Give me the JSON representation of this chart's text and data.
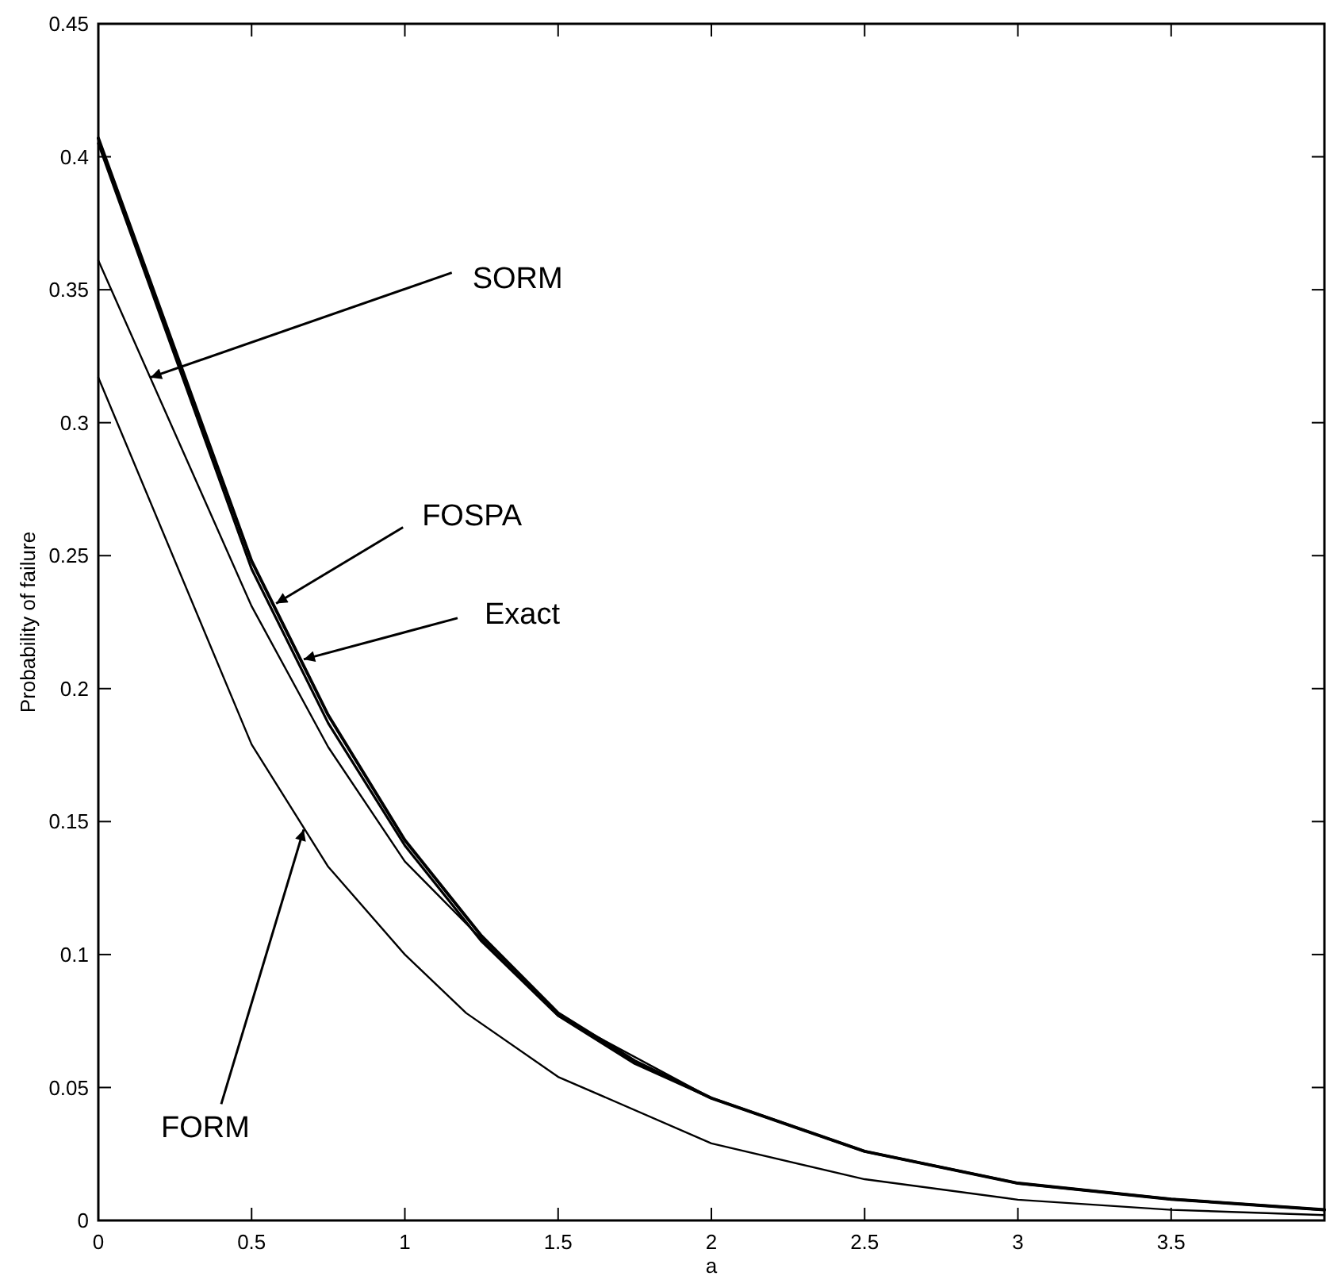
{
  "chart_data": {
    "type": "line",
    "xlabel": "a",
    "ylabel": "Probability of failure",
    "xlim": [
      0,
      4
    ],
    "ylim": [
      0,
      0.45
    ],
    "xticks": [
      0,
      0.5,
      1,
      1.5,
      2,
      2.5,
      3,
      3.5
    ],
    "yticks": [
      0,
      0.05,
      0.1,
      0.15,
      0.2,
      0.25,
      0.3,
      0.35,
      0.4,
      0.45
    ],
    "grid": false,
    "marker": "none",
    "line_style": "solid",
    "series": [
      {
        "color": "#000000",
        "x": [
          0,
          0.5,
          0.75,
          1,
          1.25,
          1.5,
          1.75,
          2,
          2.5,
          3,
          3.5,
          4
        ],
        "values": [
          0.407,
          0.248,
          0.19,
          0.143,
          0.107,
          0.078,
          0.06,
          0.046,
          0.026,
          0.014,
          0.008,
          0.004
        ]
      },
      {
        "color": "#000000",
        "x": [
          0,
          0.5,
          0.75,
          1,
          1.25,
          1.5,
          1.75,
          2,
          2.5,
          3,
          3.5,
          4
        ],
        "values": [
          0.405,
          0.245,
          0.187,
          0.141,
          0.105,
          0.077,
          0.059,
          0.046,
          0.026,
          0.014,
          0.008,
          0.004
        ]
      },
      {
        "color": "#000000",
        "x": [
          0,
          0.5,
          0.75,
          1,
          1.3,
          1.5,
          2,
          2.5,
          3,
          3.5,
          4
        ],
        "values": [
          0.361,
          0.231,
          0.178,
          0.135,
          0.1,
          0.077,
          0.046,
          0.026,
          0.014,
          0.008,
          0.004
        ]
      },
      {
        "color": "#000000",
        "x": [
          0,
          0.5,
          0.75,
          1,
          1.2,
          1.5,
          2,
          2.5,
          3,
          3.5,
          4
        ],
        "values": [
          0.317,
          0.179,
          0.133,
          0.1,
          0.078,
          0.054,
          0.029,
          0.0155,
          0.0078,
          0.004,
          0.002
        ]
      }
    ],
    "annotations": [
      {
        "text": "SORM",
        "x": 0.17,
        "y": 0.317
      },
      {
        "text": "FOSPA",
        "x": 0.58,
        "y": 0.232
      },
      {
        "text": "Exact",
        "x": 0.67,
        "y": 0.211
      },
      {
        "text": "FORM",
        "x": 0.67,
        "y": 0.147
      }
    ]
  }
}
